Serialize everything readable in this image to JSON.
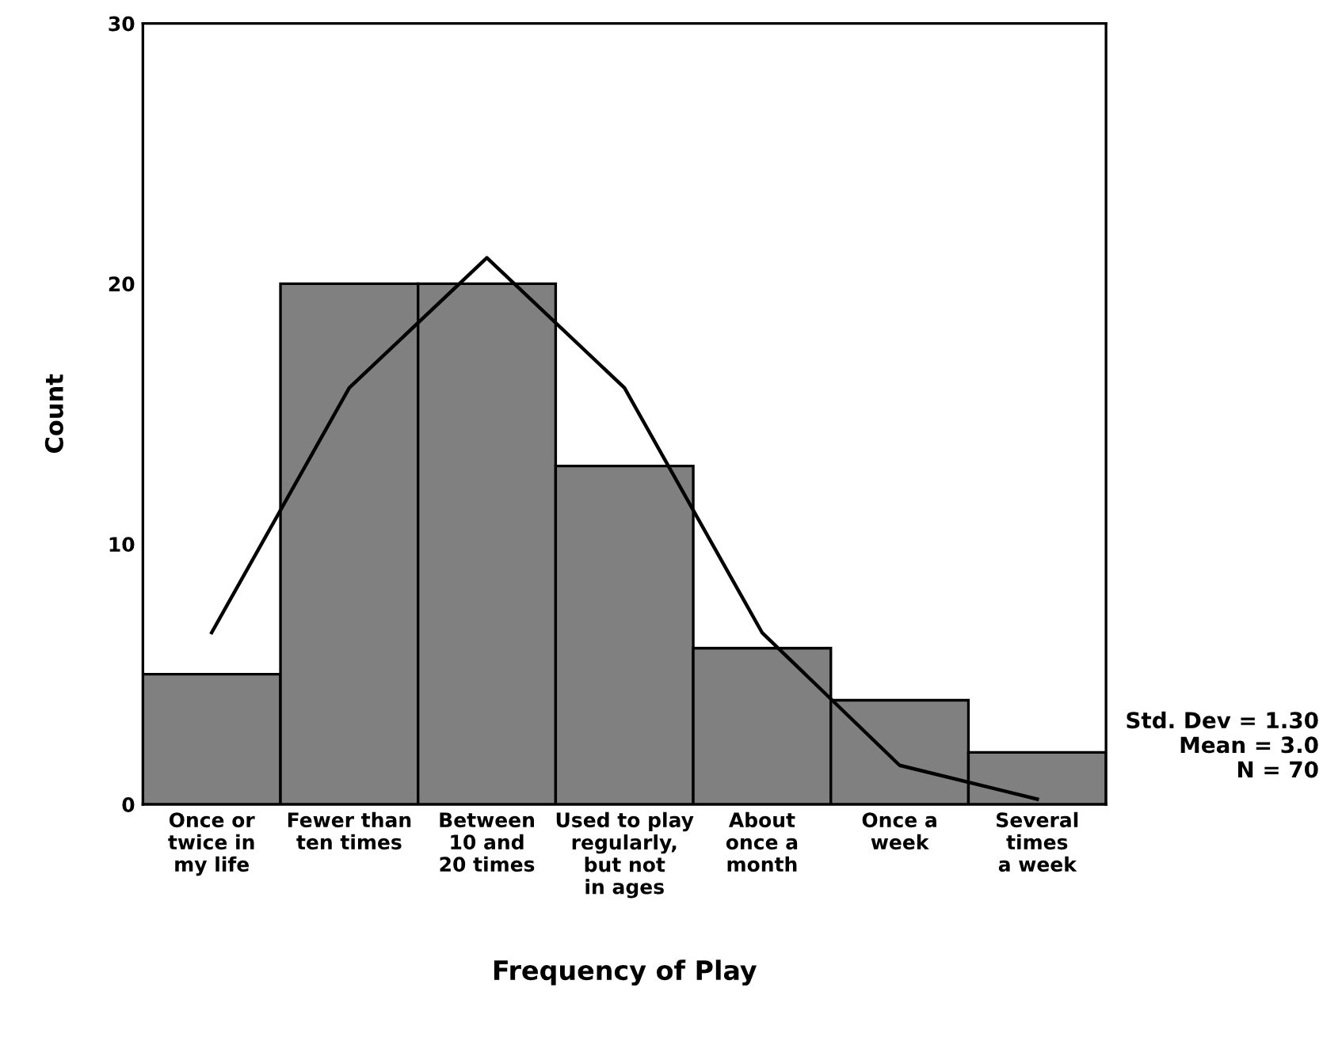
{
  "chart_data": {
    "type": "bar",
    "xlabel": "Frequency of Play",
    "ylabel": "Count",
    "categories": [
      "Once or\ntwice in\nmy life",
      "Fewer than\nten times",
      "Between\n10 and\n20 times",
      "Used to play\nregularly,\nbut not\nin ages",
      "About\nonce a\nmonth",
      "Once a\nweek",
      "Several\ntimes\na week"
    ],
    "ylim": [
      0,
      30
    ],
    "yticks": [
      0,
      10,
      20,
      30
    ],
    "series": [
      {
        "color": "#808080",
        "values": [
          5,
          20,
          20,
          13,
          6,
          4,
          2
        ]
      },
      {
        "type": "line",
        "color": "#000000",
        "values": [
          6.6,
          16,
          21,
          16,
          6.6,
          1.5,
          0.2
        ]
      }
    ],
    "annotations": [
      "Std. Dev = 1.30\nMean = 3.0\nN = 70"
    ],
    "grid": false
  }
}
